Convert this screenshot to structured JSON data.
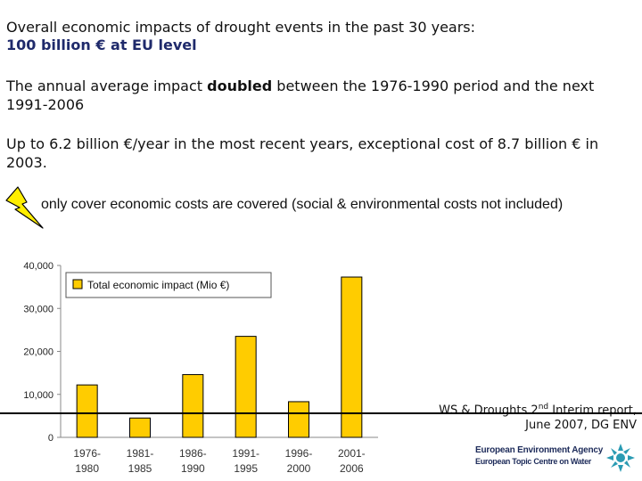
{
  "heading": {
    "line1": "Overall economic impacts of drought events in the past 30 years:",
    "line2": "100 billion € at EU level"
  },
  "para1": {
    "before": "The annual average impact ",
    "bold": "doubled",
    "after": " between the 1976-1990 period and the next 1991-2006"
  },
  "para2": "Up to 6.2 billion €/year in the most recent years, exceptional cost of 8.7 billion € in 2003.",
  "note": "only cover economic costs are covered (social & environmental costs not included)",
  "source": {
    "line1_a": "WS & Droughts 2",
    "line1_sup": "nd",
    "line1_b": " Interim report,",
    "line2": "June 2007, DG ENV"
  },
  "logo": {
    "line1": "European Environment Agency",
    "line2": "European Topic Centre on Water"
  },
  "colors": {
    "bar": "#ffcc00",
    "bar_edge": "#000000",
    "heading_blue": "#1f2a6b"
  },
  "chart_data": {
    "type": "bar",
    "categories": [
      [
        "1976-",
        "1980"
      ],
      [
        "1981-",
        "1985"
      ],
      [
        "1986-",
        "1990"
      ],
      [
        "1991-",
        "1995"
      ],
      [
        "1996-",
        "2000"
      ],
      [
        "2001-",
        "2006"
      ]
    ],
    "values": [
      12200,
      4500,
      14600,
      23500,
      8300,
      37300
    ],
    "legend": "Total economic impact (Mio €)",
    "yticks": [
      0,
      10000,
      20000,
      30000,
      40000
    ],
    "ytick_labels": [
      "0",
      "10,000",
      "20,000",
      "30,000",
      "40,000"
    ],
    "ylim": [
      0,
      40000
    ]
  }
}
